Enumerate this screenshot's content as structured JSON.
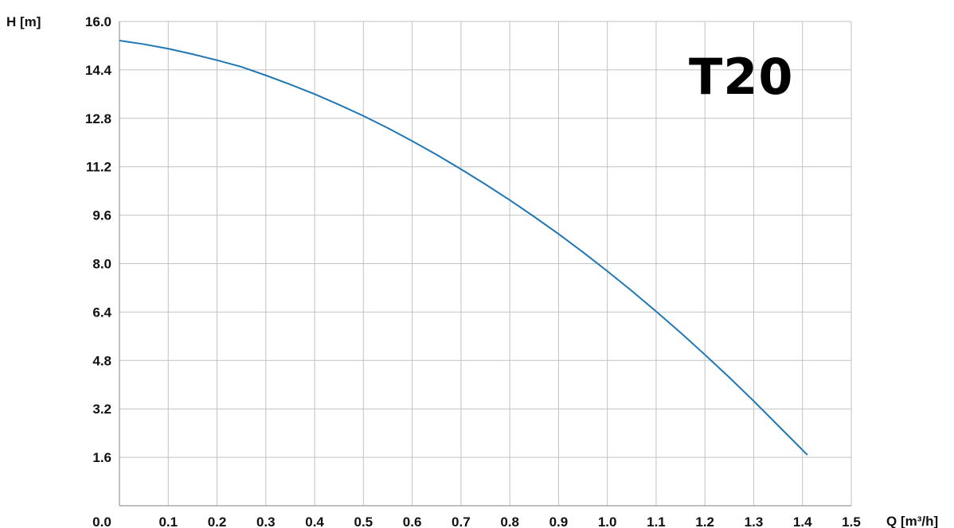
{
  "chart_data": {
    "type": "line",
    "title": "T20",
    "xlabel": "Q [m³/h]",
    "ylabel": "H [m]",
    "xlim": [
      0,
      1.5
    ],
    "ylim": [
      0,
      16
    ],
    "x_ticks": [
      "0.0",
      "0.1",
      "0.2",
      "0.3",
      "0.4",
      "0.5",
      "0.6",
      "0.7",
      "0.8",
      "0.9",
      "1.0",
      "1.1",
      "1.2",
      "1.3",
      "1.4",
      "1.5"
    ],
    "y_ticks": [
      "16.0",
      "14.4",
      "12.8",
      "11.2",
      "9.6",
      "8.0",
      "6.4",
      "4.8",
      "3.2",
      "1.6"
    ],
    "grid": true,
    "series": [
      {
        "color": "#1f77b4",
        "x": [
          0.0,
          0.05,
          0.1,
          0.15,
          0.2,
          0.25,
          0.3,
          0.35,
          0.4,
          0.45,
          0.5,
          0.55,
          0.6,
          0.65,
          0.7,
          0.75,
          0.8,
          0.85,
          0.9,
          0.95,
          1.0,
          1.05,
          1.1,
          1.15,
          1.2,
          1.25,
          1.3,
          1.35,
          1.41
        ],
        "y": [
          15.37,
          15.25,
          15.1,
          14.92,
          14.72,
          14.5,
          14.22,
          13.92,
          13.6,
          13.25,
          12.88,
          12.48,
          12.05,
          11.6,
          11.12,
          10.62,
          10.1,
          9.55,
          8.98,
          8.38,
          7.75,
          7.1,
          6.42,
          5.72,
          4.99,
          4.24,
          3.46,
          2.65,
          1.68
        ]
      }
    ]
  }
}
